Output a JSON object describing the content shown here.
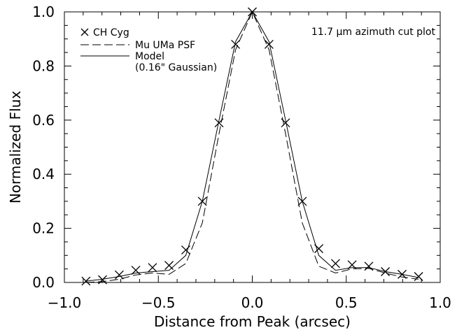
{
  "chart_data": {
    "type": "line",
    "xlabel": "Distance from Peak (arcsec)",
    "ylabel": "Normalized Flux",
    "xlim": [
      -1.0,
      1.0
    ],
    "ylim": [
      0.0,
      1.0
    ],
    "xticks": [
      -1.0,
      -0.5,
      0.0,
      0.5,
      1.0
    ],
    "xtick_labels": [
      "−1.0",
      "−0.5",
      "0.0",
      "0.5",
      "1.0"
    ],
    "yticks": [
      0.0,
      0.2,
      0.4,
      0.6,
      0.8,
      1.0
    ],
    "ytick_labels": [
      "0.0",
      "0.2",
      "0.4",
      "0.6",
      "0.8",
      "1.0"
    ],
    "annotation": "11.7 μm azimuth cut plot",
    "legend_position": "top-left",
    "legend_model_extra": "(0.16\" Gaussian)",
    "series": [
      {
        "name": "CH Cyg",
        "style": "x-markers",
        "x": [
          -0.885,
          -0.797,
          -0.708,
          -0.62,
          -0.531,
          -0.443,
          -0.354,
          -0.266,
          -0.177,
          -0.089,
          0.0,
          0.089,
          0.177,
          0.266,
          0.354,
          0.443,
          0.531,
          0.62,
          0.708,
          0.797,
          0.885
        ],
        "y": [
          0.005,
          0.01,
          0.028,
          0.045,
          0.055,
          0.063,
          0.12,
          0.3,
          0.59,
          0.88,
          1.0,
          0.88,
          0.59,
          0.3,
          0.125,
          0.07,
          0.065,
          0.06,
          0.04,
          0.03,
          0.022
        ]
      },
      {
        "name": "Mu UMa PSF",
        "style": "dashed",
        "x": [
          -0.885,
          -0.797,
          -0.708,
          -0.62,
          -0.531,
          -0.443,
          -0.354,
          -0.266,
          -0.177,
          -0.089,
          0.0,
          0.089,
          0.177,
          0.266,
          0.354,
          0.443,
          0.531,
          0.62,
          0.708,
          0.797,
          0.885
        ],
        "y": [
          0.0,
          0.003,
          0.012,
          0.028,
          0.035,
          0.03,
          0.07,
          0.22,
          0.55,
          0.86,
          1.0,
          0.86,
          0.55,
          0.22,
          0.06,
          0.035,
          0.05,
          0.052,
          0.035,
          0.02,
          0.012
        ]
      },
      {
        "name": "Model",
        "style": "solid",
        "x": [
          -0.885,
          -0.797,
          -0.708,
          -0.62,
          -0.531,
          -0.443,
          -0.354,
          -0.266,
          -0.177,
          -0.089,
          0.0,
          0.089,
          0.177,
          0.266,
          0.354,
          0.443,
          0.531,
          0.62,
          0.708,
          0.797,
          0.885
        ],
        "y": [
          0.005,
          0.012,
          0.022,
          0.035,
          0.04,
          0.045,
          0.1,
          0.3,
          0.6,
          0.89,
          1.0,
          0.89,
          0.6,
          0.3,
          0.1,
          0.045,
          0.055,
          0.055,
          0.04,
          0.03,
          0.018
        ]
      }
    ]
  },
  "colors": {
    "foreground": "#000000",
    "background": "#ffffff"
  }
}
